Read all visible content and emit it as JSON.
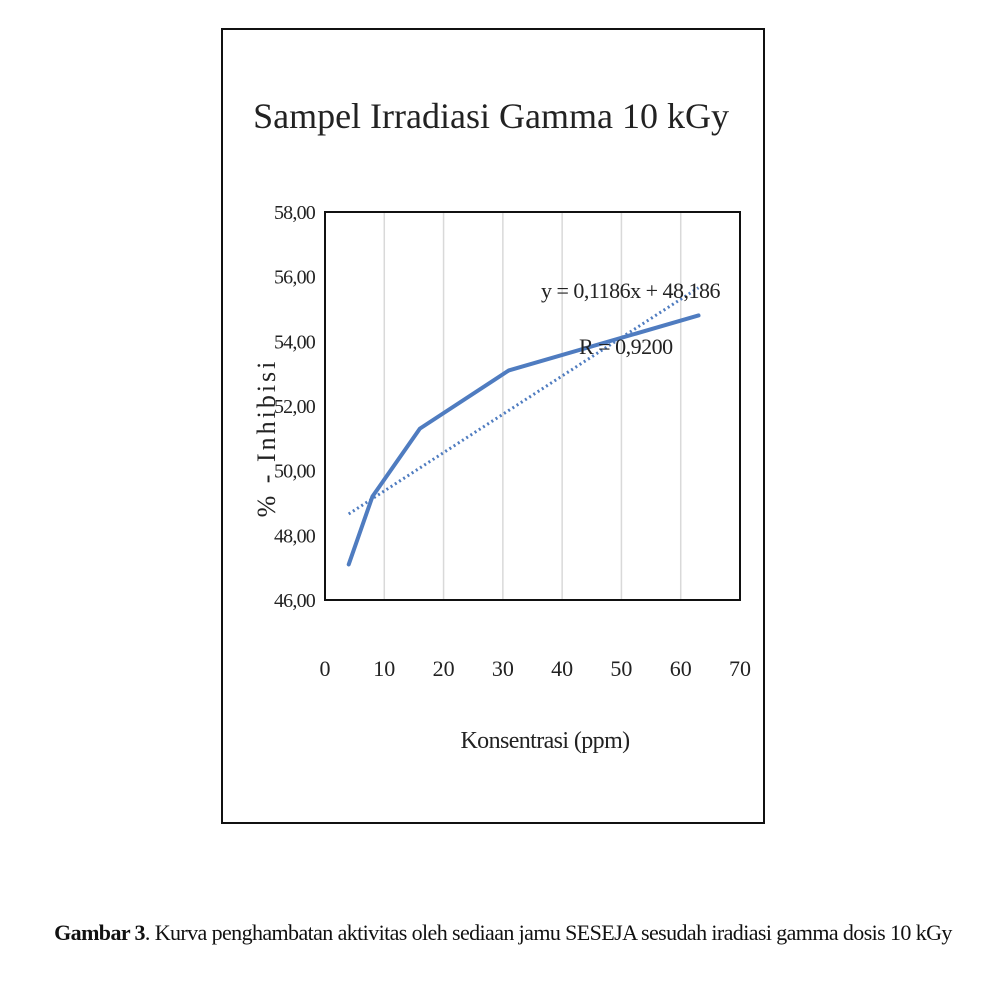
{
  "figure": {
    "caption_label": "Gambar 3",
    "caption_text": ". Kurva penghambatan aktivitas oleh sediaan jamu SESEJA sesudah iradiasi gamma dosis 10 kGy"
  },
  "chart_data": {
    "type": "line",
    "title": "Sampel Irradiasi Gamma 10 kGy",
    "xlabel": "Konsentrasi (ppm)",
    "ylabel": "% - Inhibisi",
    "xlim": [
      0,
      70
    ],
    "ylim": [
      46,
      58
    ],
    "x_ticks": [
      0,
      10,
      20,
      30,
      40,
      50,
      60,
      70
    ],
    "y_ticks": [
      46,
      48,
      50,
      52,
      54,
      56,
      58
    ],
    "y_tick_labels": [
      "46,00",
      "48,00",
      "50,00",
      "52,00",
      "54,00",
      "56,00",
      "58,00"
    ],
    "grid": "vertical",
    "series": [
      {
        "x": [
          4,
          8,
          16,
          31,
          63
        ],
        "values": [
          47.1,
          49.2,
          51.3,
          53.1,
          54.8
        ],
        "color": "#4f7cc0"
      }
    ],
    "trendline": {
      "slope": 0.1186,
      "intercept": 48.186,
      "x_range": [
        4,
        63
      ],
      "equation": "y = 0,1186x + 48,186",
      "r_label": "R = 0,9200",
      "color": "#4f7cc0"
    }
  }
}
